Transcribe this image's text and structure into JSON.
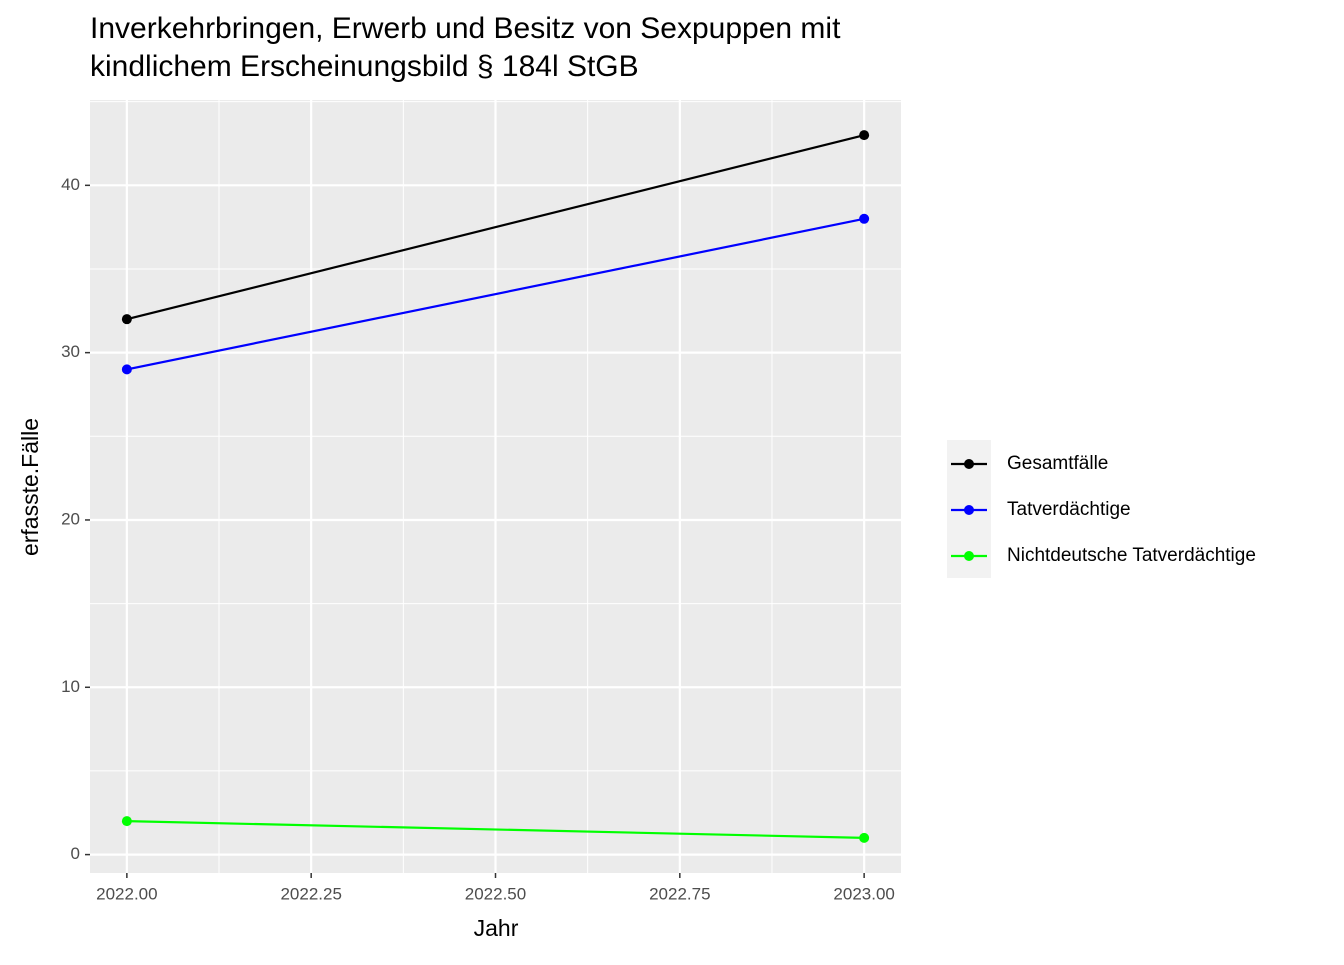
{
  "chart_data": {
    "type": "line",
    "title": [
      "Inverkehrbringen, Erwerb und Besitz von Sexpuppen mit",
      "kindlichem Erscheinungsbild § 184l StGB"
    ],
    "x_label": "Jahr",
    "y_label": "erfasste.Fälle",
    "x": [
      2022,
      2023
    ],
    "series": [
      {
        "name": "Gesamtfälle",
        "color": "#000000",
        "values": [
          32,
          43
        ]
      },
      {
        "name": "Tatverdächtige",
        "color": "#0000ff",
        "values": [
          29,
          38
        ]
      },
      {
        "name": "Nichtdeutsche Tatverdächtige",
        "color": "#00ff00",
        "values": [
          2,
          1
        ]
      }
    ],
    "xlim": [
      2021.95,
      2023.05
    ],
    "xticks": [
      {
        "value": 2022,
        "label": "2022.00"
      },
      2022.25,
      {
        "value": 2022.5,
        "label": "2022.50"
      },
      2022.75,
      {
        "value": 2023,
        "label": "2023.00"
      }
    ],
    "ylim": [
      -1.1,
      45.1
    ],
    "yticks": [
      0,
      10,
      20,
      30,
      40
    ],
    "grid": true,
    "legend": "right"
  }
}
